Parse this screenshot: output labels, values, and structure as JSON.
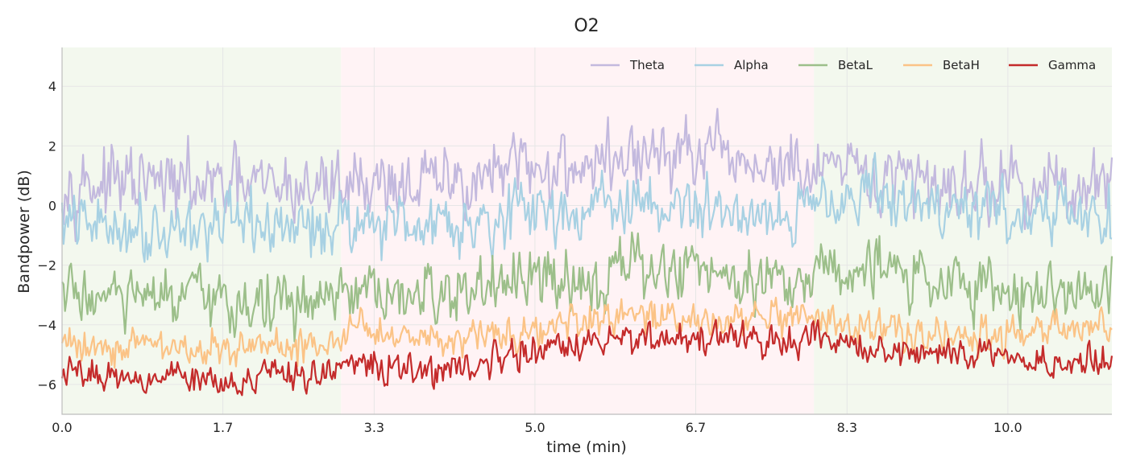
{
  "chart_data": {
    "type": "line",
    "title": "O2",
    "xlabel": "time (min)",
    "ylabel": "Bandpower (dB)",
    "xlim": [
      0,
      11.1
    ],
    "ylim": [
      -7.0,
      5.3
    ],
    "x_ticks": [
      0.0,
      1.7,
      3.3,
      5.0,
      6.7,
      8.3,
      10.0
    ],
    "x_tick_labels": [
      "0.0",
      "1.7",
      "3.3",
      "5.0",
      "6.7",
      "8.3",
      "10.0"
    ],
    "y_ticks": [
      -6,
      -4,
      -2,
      0,
      2,
      4
    ],
    "y_tick_labels": [
      "−6",
      "−4",
      "−2",
      "0",
      "2",
      "4"
    ],
    "grid": true,
    "legend_position": "top-right",
    "background_regions": [
      {
        "x_start": 0.0,
        "x_end": 2.95,
        "color": "#f3f8ee"
      },
      {
        "x_start": 2.95,
        "x_end": 7.95,
        "color": "#fff3f5"
      },
      {
        "x_start": 7.95,
        "x_end": 11.1,
        "color": "#f3f8ee"
      }
    ],
    "series": [
      {
        "name": "Theta",
        "color": "#c3b9de",
        "x": [
          0.0,
          0.5,
          1.0,
          1.5,
          2.0,
          2.5,
          2.9,
          3.0,
          3.5,
          4.0,
          4.5,
          5.0,
          5.5,
          6.0,
          6.5,
          7.0,
          7.5,
          7.9,
          8.0,
          8.5,
          9.0,
          9.5,
          10.0,
          10.5,
          11.1
        ],
        "values": [
          0.9,
          0.7,
          0.7,
          0.6,
          0.6,
          0.6,
          0.7,
          0.9,
          0.8,
          0.7,
          1.0,
          1.2,
          1.4,
          1.6,
          1.7,
          1.5,
          1.3,
          1.0,
          1.1,
          0.9,
          0.8,
          0.8,
          0.7,
          0.6,
          0.6
        ]
      },
      {
        "name": "Alpha",
        "color": "#a8d1e3",
        "x": [
          0.0,
          0.5,
          1.0,
          1.5,
          2.0,
          2.5,
          2.9,
          3.0,
          3.5,
          4.0,
          4.5,
          5.0,
          5.5,
          6.0,
          6.5,
          7.0,
          7.5,
          7.9,
          8.0,
          8.5,
          9.0,
          9.5,
          10.0,
          10.5,
          11.1
        ],
        "values": [
          -0.6,
          -0.7,
          -0.7,
          -0.7,
          -0.7,
          -0.8,
          -0.6,
          -0.4,
          -0.6,
          -0.5,
          -0.4,
          -0.2,
          -0.1,
          0.0,
          -0.1,
          -0.2,
          -0.2,
          -0.3,
          0.6,
          0.3,
          0.1,
          -0.1,
          -0.2,
          -0.3,
          -0.4
        ]
      },
      {
        "name": "BetaL",
        "color": "#9cbf8a",
        "x": [
          0.0,
          0.5,
          1.0,
          1.5,
          2.0,
          2.5,
          2.9,
          3.0,
          3.5,
          4.0,
          4.5,
          5.0,
          5.5,
          6.0,
          6.5,
          7.0,
          7.5,
          7.9,
          8.0,
          8.5,
          9.0,
          9.5,
          10.0,
          10.5,
          11.1
        ],
        "values": [
          -2.9,
          -3.1,
          -3.2,
          -3.2,
          -3.3,
          -3.3,
          -3.3,
          -3.0,
          -3.2,
          -3.0,
          -2.8,
          -2.6,
          -2.4,
          -2.2,
          -2.1,
          -2.2,
          -2.4,
          -2.5,
          -1.9,
          -2.1,
          -2.4,
          -2.6,
          -2.8,
          -2.9,
          -3.0
        ]
      },
      {
        "name": "BetaH",
        "color": "#fbc386",
        "x": [
          0.0,
          0.5,
          1.0,
          1.5,
          2.0,
          2.5,
          2.9,
          3.0,
          3.5,
          4.0,
          4.5,
          5.0,
          5.5,
          6.0,
          6.5,
          7.0,
          7.5,
          7.9,
          8.0,
          8.5,
          9.0,
          9.5,
          10.0,
          10.5,
          11.1
        ],
        "values": [
          -4.6,
          -4.7,
          -4.7,
          -4.8,
          -4.8,
          -4.8,
          -4.6,
          -4.1,
          -4.3,
          -4.4,
          -4.3,
          -4.1,
          -4.0,
          -3.8,
          -3.8,
          -3.8,
          -3.9,
          -4.0,
          -3.9,
          -4.1,
          -4.3,
          -4.4,
          -4.3,
          -4.2,
          -4.1
        ]
      },
      {
        "name": "Gamma",
        "color": "#c42b2b",
        "x": [
          0.0,
          0.5,
          1.0,
          1.5,
          2.0,
          2.5,
          2.9,
          3.0,
          3.5,
          4.0,
          4.5,
          5.0,
          5.5,
          6.0,
          6.5,
          7.0,
          7.5,
          7.9,
          8.0,
          8.5,
          9.0,
          9.5,
          10.0,
          10.5,
          11.1
        ],
        "values": [
          -5.6,
          -5.7,
          -5.7,
          -5.7,
          -5.8,
          -5.8,
          -5.6,
          -5.2,
          -5.5,
          -5.6,
          -5.2,
          -4.9,
          -4.7,
          -4.4,
          -4.4,
          -4.5,
          -4.6,
          -4.6,
          -4.5,
          -4.8,
          -5.0,
          -5.0,
          -5.1,
          -5.2,
          -5.3
        ]
      }
    ]
  }
}
